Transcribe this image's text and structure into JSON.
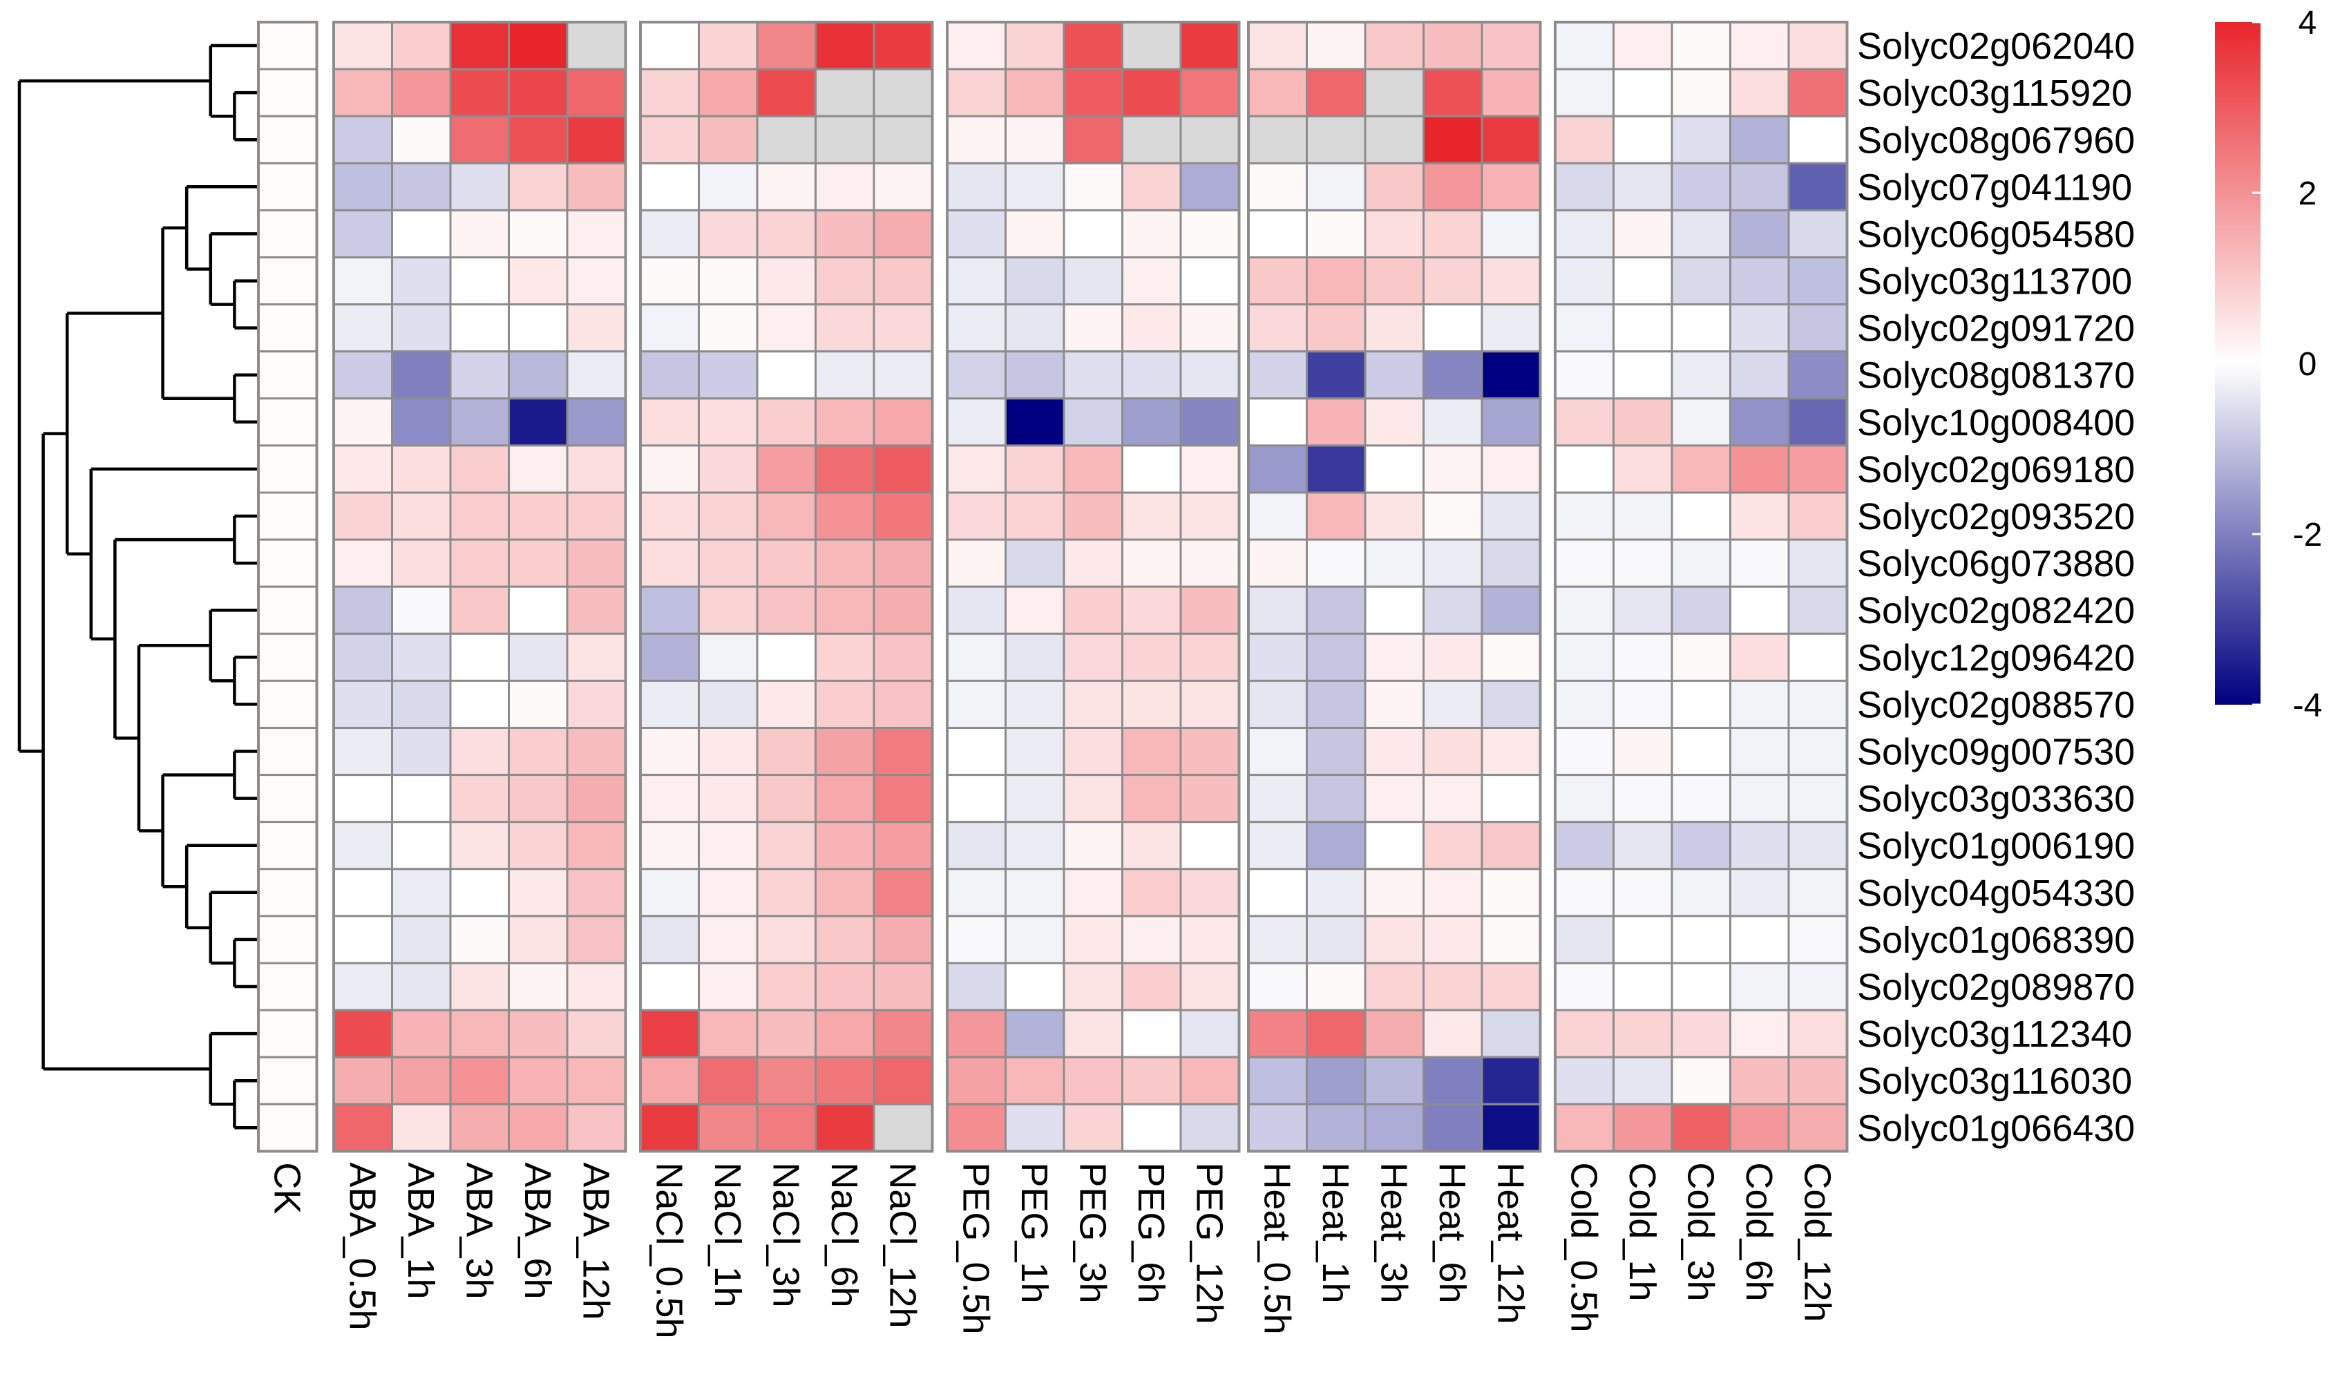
{
  "chart_data": {
    "type": "heatmap",
    "title": "",
    "color_scale": {
      "min": -4,
      "max": 4,
      "ticks": [
        4,
        2,
        0,
        -2,
        -4
      ],
      "low_color": "#000080",
      "mid_color": "#ffffff",
      "high_color": "#e8252b",
      "na_color": "#d9d9d9"
    },
    "groups": [
      {
        "name": "CK",
        "columns": [
          "CK"
        ]
      },
      {
        "name": "ABA",
        "columns": [
          "ABA_0.5h",
          "ABA_1h",
          "ABA_3h",
          "ABA_6h",
          "ABA_12h"
        ]
      },
      {
        "name": "NaCl",
        "columns": [
          "NaCl_0.5h",
          "NaCl_1h",
          "NaCl_3h",
          "NaCl_6h",
          "NaCl_12h"
        ]
      },
      {
        "name": "PEG",
        "columns": [
          "PEG_0.5h",
          "PEG_1h",
          "PEG_3h",
          "PEG_6h",
          "PEG_12h"
        ]
      },
      {
        "name": "Heat",
        "columns": [
          "Heat_0.5h",
          "Heat_1h",
          "Heat_3h",
          "Heat_6h",
          "Heat_12h"
        ]
      },
      {
        "name": "Cold",
        "columns": [
          "Cold_0.5h",
          "Cold_1h",
          "Cold_3h",
          "Cold_6h",
          "Cold_12h"
        ]
      }
    ],
    "rows": [
      "Solyc02g062040",
      "Solyc03g115920",
      "Solyc08g067960",
      "Solyc07g041190",
      "Solyc06g054580",
      "Solyc03g113700",
      "Solyc02g091720",
      "Solyc08g081370",
      "Solyc10g008400",
      "Solyc02g069180",
      "Solyc02g093520",
      "Solyc06g073880",
      "Solyc02g082420",
      "Solyc12g096420",
      "Solyc02g088570",
      "Solyc09g007530",
      "Solyc03g033630",
      "Solyc01g006190",
      "Solyc04g054330",
      "Solyc01g068390",
      "Solyc02g089870",
      "Solyc03g112340",
      "Solyc03g116030",
      "Solyc01g066430"
    ],
    "values": [
      [
        0.05,
        0.5,
        0.9,
        3.8,
        4.0,
        null,
        0.0,
        0.8,
        2.2,
        3.8,
        3.6,
        0.3,
        0.8,
        3.2,
        null,
        3.6,
        0.5,
        0.2,
        1.0,
        1.2,
        1.1,
        -0.2,
        0.3,
        0.1,
        0.3,
        0.6
      ],
      [
        0.05,
        1.3,
        1.9,
        3.3,
        3.4,
        2.8,
        0.8,
        1.6,
        3.3,
        null,
        null,
        0.8,
        1.3,
        3.0,
        3.3,
        2.5,
        1.3,
        2.8,
        null,
        3.2,
        1.4,
        -0.2,
        0.0,
        0.1,
        0.6,
        2.6
      ],
      [
        0.05,
        -0.8,
        0.1,
        2.7,
        3.2,
        3.6,
        0.8,
        1.2,
        null,
        null,
        null,
        0.2,
        0.2,
        2.8,
        null,
        null,
        null,
        null,
        null,
        4.5,
        3.6,
        0.8,
        0.0,
        -0.5,
        -1.2,
        0.0
      ],
      [
        0.05,
        -1.0,
        -0.9,
        -0.5,
        0.8,
        1.2,
        0.0,
        -0.2,
        0.2,
        0.3,
        0.2,
        -0.4,
        -0.3,
        0.1,
        0.8,
        -1.3,
        0.1,
        -0.2,
        1.0,
        1.9,
        1.4,
        -0.6,
        -0.4,
        -0.8,
        -0.9,
        -2.5
      ],
      [
        0.05,
        -0.8,
        0.0,
        0.2,
        0.1,
        0.3,
        -0.3,
        0.7,
        0.8,
        1.2,
        1.5,
        -0.5,
        0.2,
        0.0,
        0.2,
        0.1,
        0.0,
        0.1,
        0.6,
        0.8,
        -0.2,
        -0.3,
        0.2,
        -0.4,
        -1.2,
        -0.6
      ],
      [
        0.05,
        -0.2,
        -0.5,
        0.0,
        0.4,
        0.3,
        0.1,
        0.1,
        0.4,
        0.9,
        1.0,
        -0.3,
        -0.6,
        -0.4,
        0.3,
        0.0,
        1.0,
        1.3,
        1.0,
        0.8,
        0.6,
        -0.3,
        0.0,
        -0.6,
        -0.8,
        -1.0
      ],
      [
        0.05,
        -0.3,
        -0.5,
        0.0,
        0.0,
        0.5,
        -0.2,
        0.1,
        0.3,
        0.7,
        0.7,
        -0.3,
        -0.4,
        0.2,
        0.4,
        0.2,
        0.7,
        1.0,
        0.5,
        0.0,
        -0.3,
        -0.2,
        0.0,
        0.0,
        -0.5,
        -0.9
      ],
      [
        0.05,
        -0.8,
        -2.0,
        -0.7,
        -1.1,
        -0.3,
        -0.9,
        -0.8,
        0.0,
        -0.3,
        -0.3,
        -0.7,
        -0.9,
        -0.5,
        -0.5,
        -0.4,
        -0.7,
        -3.0,
        -0.8,
        -1.9,
        -4.0,
        -0.1,
        0.0,
        -0.3,
        -0.6,
        -1.8
      ],
      [
        0.05,
        0.2,
        -1.8,
        -1.2,
        -3.6,
        -1.6,
        0.6,
        0.6,
        0.9,
        1.3,
        1.6,
        -0.3,
        -4.0,
        -0.7,
        -1.5,
        -1.9,
        0.0,
        1.4,
        0.4,
        -0.3,
        -1.4,
        0.8,
        1.0,
        -0.2,
        -1.7,
        -2.4
      ],
      [
        0.05,
        0.4,
        0.6,
        0.9,
        0.3,
        0.6,
        0.2,
        0.7,
        1.8,
        2.7,
        3.0,
        0.4,
        0.8,
        1.3,
        0.0,
        0.3,
        -1.6,
        -3.1,
        0.0,
        0.2,
        0.3,
        0.0,
        0.6,
        1.3,
        2.0,
        1.8
      ],
      [
        0.05,
        0.8,
        0.6,
        0.9,
        0.9,
        0.9,
        0.6,
        0.8,
        1.3,
        2.0,
        2.5,
        0.7,
        0.8,
        1.2,
        0.5,
        0.5,
        -0.2,
        1.3,
        0.5,
        0.1,
        -0.4,
        -0.2,
        -0.2,
        0.0,
        0.5,
        0.9
      ],
      [
        0.05,
        0.3,
        0.6,
        0.9,
        0.9,
        1.2,
        0.6,
        0.8,
        1.0,
        1.3,
        1.5,
        0.2,
        -0.6,
        0.4,
        0.2,
        0.2,
        0.2,
        -0.1,
        -0.2,
        -0.3,
        -0.6,
        -0.1,
        -0.1,
        -0.2,
        -0.1,
        -0.4
      ],
      [
        0.05,
        -0.9,
        -0.1,
        1.0,
        0.0,
        1.2,
        -1.0,
        0.8,
        1.1,
        1.3,
        1.5,
        -0.4,
        0.3,
        0.9,
        0.7,
        1.2,
        -0.4,
        -0.9,
        0.0,
        -0.6,
        -1.2,
        -0.2,
        -0.4,
        -0.7,
        0.0,
        -0.6
      ],
      [
        0.05,
        -0.7,
        -0.5,
        0.0,
        -0.4,
        0.5,
        -1.2,
        -0.2,
        0.0,
        0.8,
        1.1,
        -0.2,
        -0.4,
        0.7,
        0.8,
        0.8,
        -0.5,
        -0.9,
        0.3,
        0.4,
        0.1,
        -0.2,
        -0.1,
        0.1,
        0.6,
        0.0
      ],
      [
        0.05,
        -0.5,
        -0.6,
        0.0,
        0.1,
        0.7,
        -0.3,
        -0.4,
        0.4,
        0.9,
        1.1,
        -0.2,
        -0.3,
        0.5,
        0.5,
        0.5,
        -0.4,
        -0.9,
        0.2,
        -0.3,
        -0.6,
        -0.2,
        -0.1,
        0.0,
        -0.2,
        -0.2
      ],
      [
        0.05,
        -0.3,
        -0.5,
        0.6,
        0.9,
        1.2,
        0.2,
        0.4,
        1.0,
        1.7,
        2.4,
        0.0,
        -0.3,
        0.6,
        1.3,
        1.2,
        -0.2,
        -0.9,
        0.4,
        0.6,
        0.4,
        -0.1,
        0.2,
        0.0,
        -0.2,
        -0.2
      ],
      [
        0.05,
        0.0,
        0.0,
        0.8,
        1.0,
        1.5,
        0.3,
        0.4,
        1.0,
        1.6,
        2.4,
        0.0,
        -0.3,
        0.5,
        1.3,
        1.2,
        -0.3,
        -0.9,
        0.3,
        0.3,
        0.0,
        -0.2,
        -0.1,
        -0.1,
        -0.2,
        -0.2
      ],
      [
        0.05,
        -0.3,
        0.0,
        0.5,
        0.8,
        1.3,
        0.2,
        0.3,
        0.8,
        1.4,
        1.8,
        -0.4,
        -0.3,
        0.2,
        0.5,
        0.0,
        -0.3,
        -1.3,
        0.0,
        0.8,
        1.0,
        -0.8,
        -0.4,
        -0.8,
        -0.5,
        -0.4
      ],
      [
        0.05,
        0.0,
        -0.3,
        0.0,
        0.4,
        1.1,
        -0.2,
        0.3,
        0.8,
        1.3,
        2.3,
        -0.2,
        -0.2,
        0.3,
        0.9,
        0.7,
        0.0,
        -0.3,
        0.2,
        0.3,
        0.1,
        -0.1,
        -0.1,
        -0.2,
        -0.3,
        -0.2
      ],
      [
        0.05,
        0.0,
        -0.4,
        0.1,
        0.5,
        1.1,
        -0.4,
        0.3,
        0.6,
        1.0,
        1.5,
        -0.1,
        -0.2,
        0.4,
        0.3,
        0.4,
        -0.3,
        -0.4,
        0.5,
        0.4,
        0.1,
        -0.4,
        0.0,
        0.0,
        0.0,
        -0.1
      ],
      [
        0.05,
        -0.3,
        -0.4,
        0.5,
        0.2,
        0.4,
        0.0,
        0.3,
        0.9,
        1.1,
        1.2,
        -0.6,
        0.0,
        0.5,
        0.9,
        0.5,
        -0.1,
        0.1,
        0.8,
        0.8,
        0.8,
        -0.1,
        0.0,
        0.0,
        -0.2,
        -0.2
      ],
      [
        0.05,
        3.3,
        1.4,
        1.3,
        1.2,
        0.8,
        3.5,
        1.3,
        1.2,
        1.6,
        2.2,
        1.9,
        -1.2,
        0.5,
        0.0,
        -0.4,
        2.3,
        2.8,
        1.5,
        0.4,
        -0.6,
        0.8,
        0.8,
        0.7,
        0.3,
        0.6
      ],
      [
        0.05,
        1.5,
        1.7,
        2.0,
        1.4,
        1.3,
        1.6,
        2.7,
        2.2,
        2.5,
        2.8,
        1.7,
        1.3,
        1.1,
        1.0,
        1.3,
        -1.0,
        -1.5,
        -1.1,
        -2.0,
        -3.4,
        -0.5,
        -0.4,
        0.1,
        1.2,
        1.2
      ],
      [
        0.05,
        2.8,
        0.5,
        1.5,
        1.6,
        1.1,
        3.6,
        2.2,
        2.4,
        3.6,
        null,
        2.1,
        -0.5,
        0.8,
        0.0,
        -0.6,
        -0.8,
        -1.2,
        -1.3,
        -2.0,
        -3.8,
        1.3,
        1.9,
        2.9,
        1.9,
        1.5
      ]
    ],
    "row_dendrogram": {
      "tree": [
        [
          [
            "Solyc02g062040",
            [
              "Solyc03g115920",
              "Solyc08g067960"
            ]
          ]
        ],
        [
          [
            [
              [
                "Solyc07g041190",
                [
                  "Solyc06g054580",
                  [
                    "Solyc03g113700",
                    "Solyc02g091720"
                  ]
                ]
              ],
              [
                "Solyc08g081370",
                "Solyc10g008400"
              ]
            ],
            [
              "Solyc02g069180",
              [
                [
                  "Solyc02g093520",
                  "Solyc06g073880"
                ],
                [
                  [
                    "Solyc02g082420",
                    [
                      "Solyc12g096420",
                      "Solyc02g088570"
                    ]
                  ],
                  [
                    [
                      "Solyc09g007530",
                      "Solyc03g033630"
                    ],
                    [
                      "Solyc01g006190",
                      [
                        "Solyc04g054330",
                        [
                          "Solyc01g068390",
                          "Solyc02g089870"
                        ]
                      ]
                    ]
                  ]
                ]
              ]
            ]
          ],
          [
            "Solyc03g112340",
            [
              "Solyc03g116030",
              "Solyc01g066430"
            ]
          ]
        ]
      ]
    }
  }
}
